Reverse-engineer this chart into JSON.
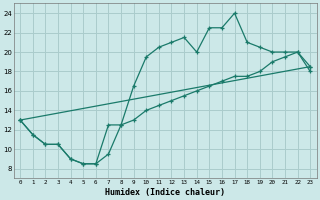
{
  "title": "",
  "xlabel": "Humidex (Indice chaleur)",
  "background_color": "#cce8e8",
  "grid_color": "#aacccc",
  "line_color": "#1a7a6a",
  "xlim": [
    -0.5,
    23.5
  ],
  "ylim": [
    7,
    25
  ],
  "xticks": [
    0,
    1,
    2,
    3,
    4,
    5,
    6,
    7,
    8,
    9,
    10,
    11,
    12,
    13,
    14,
    15,
    16,
    17,
    18,
    19,
    20,
    21,
    22,
    23
  ],
  "yticks": [
    8,
    10,
    12,
    14,
    16,
    18,
    20,
    22,
    24
  ],
  "curve1_x": [
    0,
    1,
    2,
    3,
    4,
    5,
    6,
    7,
    8,
    9,
    10,
    11,
    12,
    13,
    14,
    15,
    16,
    17,
    18,
    19,
    20,
    21,
    22,
    23
  ],
  "curve1_y": [
    13,
    11.5,
    10.5,
    10.5,
    9,
    8.5,
    8.5,
    9.5,
    12.5,
    16.5,
    19.5,
    20.5,
    21,
    21.5,
    20,
    22.5,
    22.5,
    24,
    21,
    20.5,
    20,
    20,
    20,
    18
  ],
  "curve2_x": [
    0,
    23
  ],
  "curve2_y": [
    13,
    18.5
  ],
  "curve3_x": [
    0,
    1,
    2,
    3,
    4,
    5,
    6,
    7,
    8,
    9,
    10,
    11,
    12,
    13,
    14,
    15,
    16,
    17,
    18,
    19,
    20,
    21,
    22,
    23
  ],
  "curve3_y": [
    13,
    11.5,
    10.5,
    10.5,
    9,
    8.5,
    8.5,
    12.5,
    12.5,
    13,
    14,
    14.5,
    15,
    15.5,
    16,
    16.5,
    17,
    17.5,
    17.5,
    18,
    19,
    19.5,
    20,
    18.5
  ]
}
